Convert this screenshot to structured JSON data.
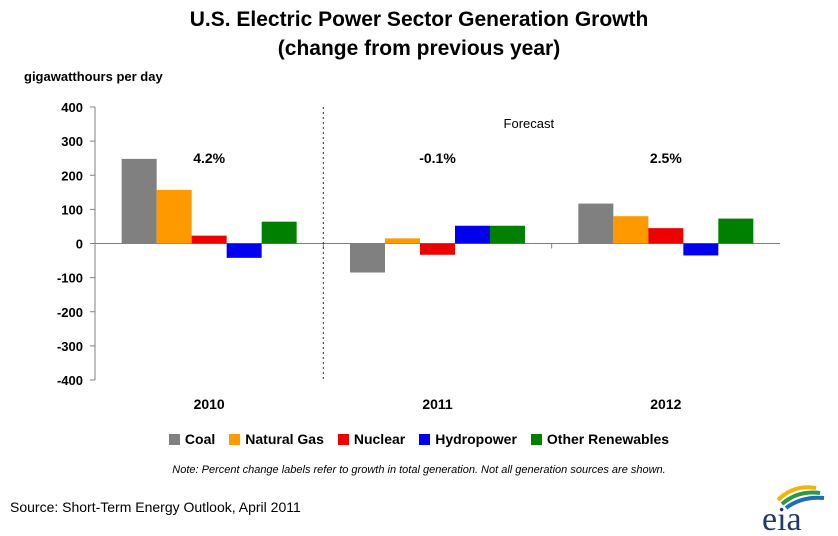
{
  "chart_data": {
    "type": "bar",
    "title": "U.S. Electric Power Sector Generation Growth",
    "subtitle": "(change from previous year)",
    "ylabel": "gigawatthours per day",
    "ylim": [
      -400,
      400
    ],
    "yticks": [
      400,
      300,
      200,
      100,
      0,
      -100,
      -200,
      -300,
      -400
    ],
    "categories": [
      "2010",
      "2011",
      "2012"
    ],
    "series": [
      {
        "name": "Coal",
        "color": "#808080",
        "values": [
          248,
          -85,
          117
        ]
      },
      {
        "name": "Natural Gas",
        "color": "#FF9900",
        "values": [
          157,
          15,
          80
        ]
      },
      {
        "name": "Nuclear",
        "color": "#EE0000",
        "values": [
          23,
          -33,
          45
        ]
      },
      {
        "name": "Hydropower",
        "color": "#0000EE",
        "values": [
          -42,
          52,
          -35
        ]
      },
      {
        "name": "Other Renewables",
        "color": "#008000",
        "values": [
          64,
          52,
          73
        ]
      }
    ],
    "annotations": {
      "total_growth_labels": [
        "4.2%",
        "-0.1%",
        "2.5%"
      ],
      "forecast_label": "Forecast",
      "forecast_starts_at": "2011"
    },
    "grid": false,
    "legend_position": "bottom"
  },
  "note": "Note: Percent change labels refer to growth in total generation.  Not all generation sources are shown.",
  "source": "Source: Short-Term Energy Outlook, April 2011",
  "logo_text": "eia"
}
